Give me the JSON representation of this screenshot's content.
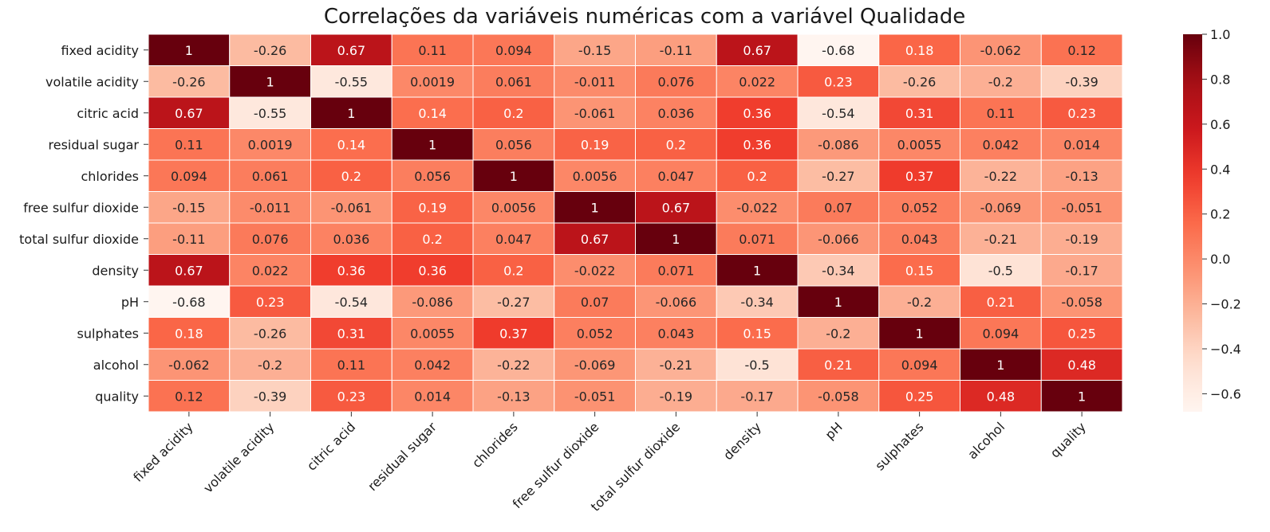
{
  "chart_data": {
    "type": "heatmap",
    "title": "Correlações da variáveis numéricas com a variável Qualidade",
    "x": [
      "fixed acidity",
      "volatile acidity",
      "citric acid",
      "residual sugar",
      "chlorides",
      "free sulfur dioxide",
      "total sulfur dioxide",
      "density",
      "pH",
      "sulphates",
      "alcohol",
      "quality"
    ],
    "y": [
      "fixed acidity",
      "volatile acidity",
      "citric acid",
      "residual sugar",
      "chlorides",
      "free sulfur dioxide",
      "total sulfur dioxide",
      "density",
      "pH",
      "sulphates",
      "alcohol",
      "quality"
    ],
    "values": [
      [
        1,
        -0.26,
        0.67,
        0.11,
        0.094,
        -0.15,
        -0.11,
        0.67,
        -0.68,
        0.18,
        -0.062,
        0.12
      ],
      [
        -0.26,
        1,
        -0.55,
        0.0019,
        0.061,
        -0.011,
        0.076,
        0.022,
        0.23,
        -0.26,
        -0.2,
        -0.39
      ],
      [
        0.67,
        -0.55,
        1,
        0.14,
        0.2,
        -0.061,
        0.036,
        0.36,
        -0.54,
        0.31,
        0.11,
        0.23
      ],
      [
        0.11,
        0.0019,
        0.14,
        1,
        0.056,
        0.19,
        0.2,
        0.36,
        -0.086,
        0.0055,
        0.042,
        0.014
      ],
      [
        0.094,
        0.061,
        0.2,
        0.056,
        1,
        0.0056,
        0.047,
        0.2,
        -0.27,
        0.37,
        -0.22,
        -0.13
      ],
      [
        -0.15,
        -0.011,
        -0.061,
        0.19,
        0.0056,
        1,
        0.67,
        -0.022,
        0.07,
        0.052,
        -0.069,
        -0.051
      ],
      [
        -0.11,
        0.076,
        0.036,
        0.2,
        0.047,
        0.67,
        1,
        0.071,
        -0.066,
        0.043,
        -0.21,
        -0.19
      ],
      [
        0.67,
        0.022,
        0.36,
        0.36,
        0.2,
        -0.022,
        0.071,
        1,
        -0.34,
        0.15,
        -0.5,
        -0.17
      ],
      [
        -0.68,
        0.23,
        -0.54,
        -0.086,
        -0.27,
        0.07,
        -0.066,
        -0.34,
        1,
        -0.2,
        0.21,
        -0.058
      ],
      [
        0.18,
        -0.26,
        0.31,
        0.0055,
        0.37,
        0.052,
        0.043,
        0.15,
        -0.2,
        1,
        0.094,
        0.25
      ],
      [
        -0.062,
        -0.2,
        0.11,
        0.042,
        -0.22,
        -0.069,
        -0.21,
        -0.5,
        0.21,
        0.094,
        1,
        0.48
      ],
      [
        0.12,
        -0.39,
        0.23,
        0.014,
        -0.13,
        -0.051,
        -0.19,
        -0.17,
        -0.058,
        0.25,
        0.48,
        1
      ]
    ],
    "colormap": "Reds",
    "vmin": -0.68,
    "vmax": 1.0,
    "colorbar_ticks": [
      1.0,
      0.8,
      0.6,
      0.4,
      0.2,
      0.0,
      -0.2,
      -0.4,
      -0.6
    ],
    "colorbar_tick_labels": [
      "1.0",
      "0.8",
      "0.6",
      "0.4",
      "0.2",
      "0.0",
      "−0.2",
      "−0.4",
      "−0.6"
    ]
  }
}
